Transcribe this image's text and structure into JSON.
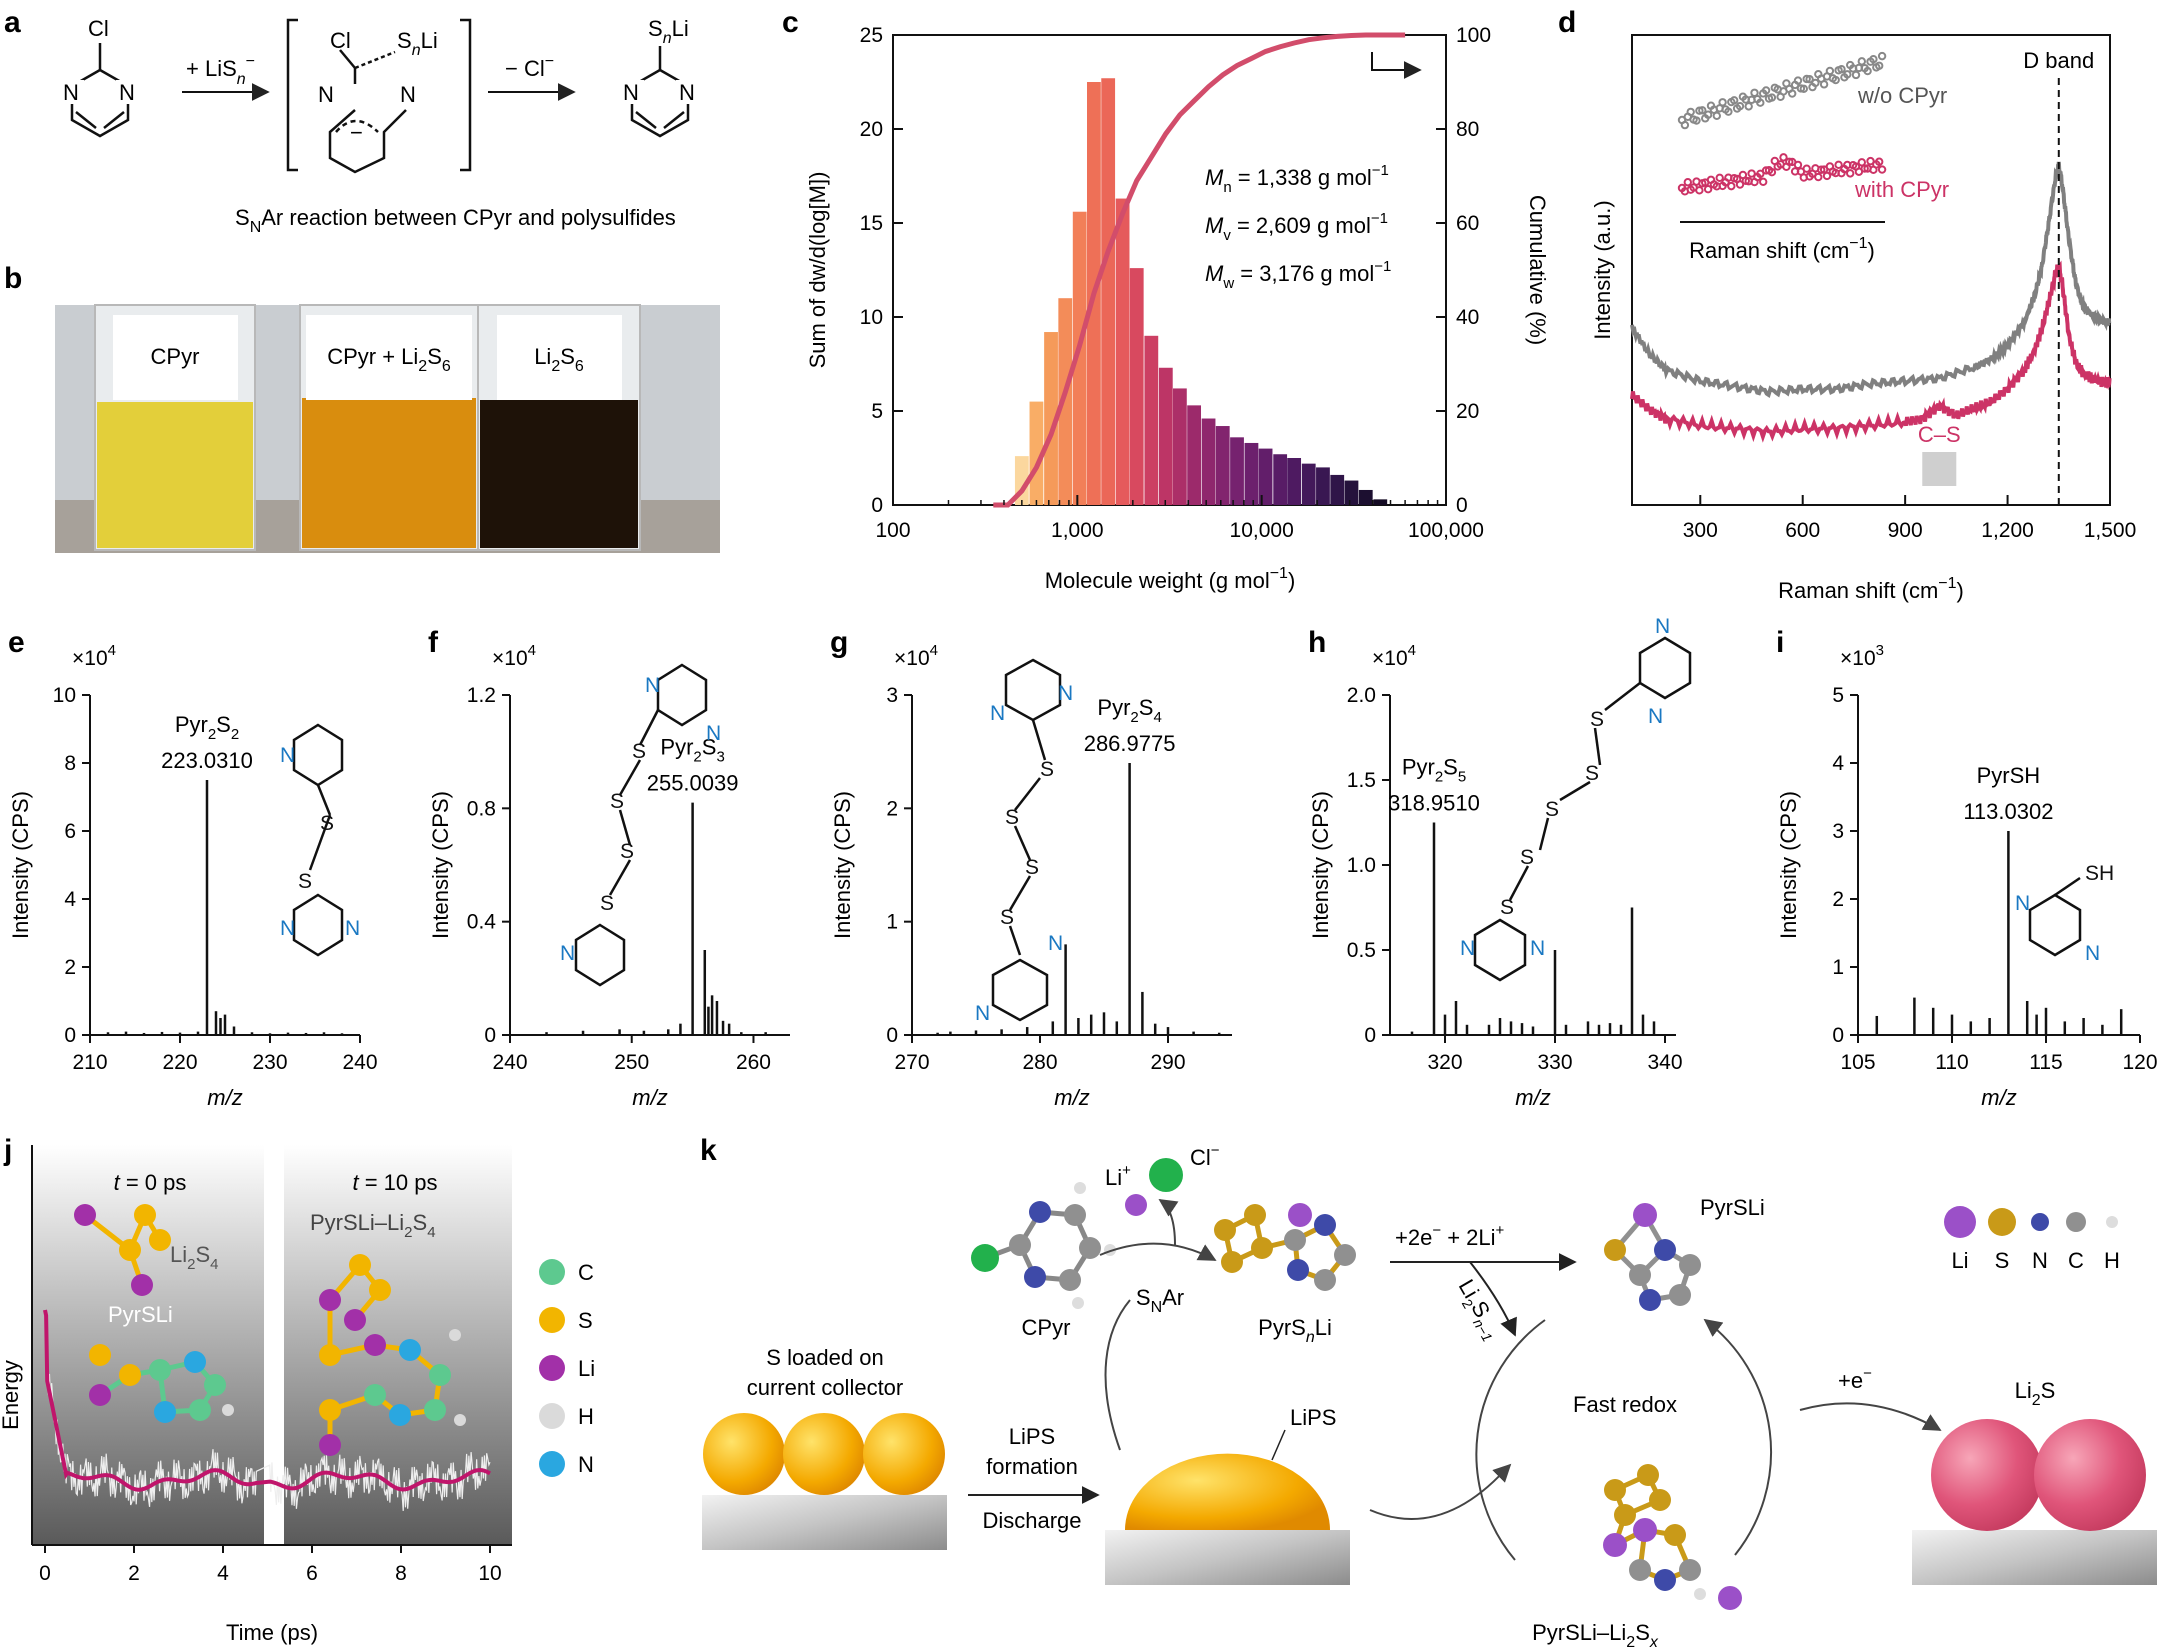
{
  "labels": {
    "a": "a",
    "b": "b",
    "c": "c",
    "d": "d",
    "e": "e",
    "f": "f",
    "g": "g",
    "h": "h",
    "i": "i",
    "j": "j",
    "k": "k"
  },
  "panel_a": {
    "reagent1": "+ LiS",
    "reagent1_sub": "n",
    "reagent1_sup": "−",
    "reagent2": "− Cl",
    "reagent2_sup": "−",
    "atom_cl": "Cl",
    "atom_n": "N",
    "atom_sn": "S",
    "atom_sn_sub": "n",
    "atom_li": "Li",
    "charge": "−",
    "caption_pre": "S",
    "caption_sub": "N",
    "caption_post": "Ar reaction between CPyr and polysulfides"
  },
  "panel_b": {
    "vial1": "CPyr",
    "vial2_pre": "CPyr + Li",
    "vial2_sub1": "2",
    "vial2_mid": "S",
    "vial2_sub2": "6",
    "vial3_pre": "Li",
    "vial3_sub1": "2",
    "vial3_mid": "S",
    "vial3_sub2": "6",
    "colors": {
      "vial1": "#e3cf3a",
      "vial2": "#d98d0e",
      "vial3": "#1e1208",
      "bg": "#c9cdd1"
    }
  },
  "panel_c": {
    "chart_data": {
      "type": "bar",
      "x_scale": "log",
      "xlim": [
        100,
        100000
      ],
      "ylim": [
        0,
        25
      ],
      "y2lim": [
        0,
        100
      ],
      "xticks": [
        "100",
        "1,000",
        "10,000",
        "100,000"
      ],
      "yticks": [
        "0",
        "5",
        "10",
        "15",
        "20",
        "25"
      ],
      "y2ticks": [
        "0",
        "20",
        "40",
        "60",
        "80",
        "100"
      ],
      "xlabel": "Molecule weight (g mol",
      "xlabel_sup": "−1",
      "xlabel_end": ")",
      "ylabel": "Sum of dw/d(log[M])",
      "y2label": "Cumulative (%)",
      "bar_x": [
        500,
        600,
        720,
        860,
        1030,
        1230,
        1470,
        1760,
        2100,
        2520,
        3020,
        3600,
        4300,
        5150,
        6150,
        7350,
        8800,
        10500,
        12600,
        15000,
        18000,
        21500,
        25700,
        30700,
        36700,
        44000
      ],
      "bar_values": [
        2.6,
        5.5,
        9.2,
        11.0,
        15.6,
        22.5,
        22.7,
        16.3,
        12.6,
        9.0,
        7.3,
        6.2,
        5.3,
        4.6,
        4.2,
        3.6,
        3.3,
        3.0,
        2.7,
        2.5,
        2.2,
        2.0,
        1.6,
        1.3,
        0.8,
        0.3
      ],
      "bar_colors": [
        "#fbd79e",
        "#f9ad66",
        "#f59a5a",
        "#f38c59",
        "#f27f58",
        "#ee7057",
        "#eb6758",
        "#e55a5c",
        "#d8495f",
        "#cc3f63",
        "#bd3566",
        "#ac2f68",
        "#9c2a6b",
        "#8f276d",
        "#82246e",
        "#76226f",
        "#6c206d",
        "#621e6a",
        "#581c66",
        "#4e1a61",
        "#43195a",
        "#391752",
        "#2f1548",
        "#25123c",
        "#1c0f30",
        "#140b24"
      ],
      "cum_x": [
        350,
        420,
        500,
        600,
        720,
        860,
        1030,
        1230,
        1470,
        1760,
        2100,
        2520,
        3020,
        3600,
        4300,
        5150,
        6150,
        7350,
        8800,
        10500,
        12600,
        15000,
        18000,
        21500,
        25700,
        30700,
        36700,
        44000,
        52000,
        60000
      ],
      "cum_y": [
        0,
        0,
        3,
        8,
        15,
        24,
        34,
        45,
        54,
        62,
        69,
        74,
        79,
        83,
        86,
        89,
        91.5,
        93.5,
        95,
        96.5,
        97.5,
        98.3,
        99,
        99.4,
        99.7,
        99.9,
        100,
        100,
        100,
        100
      ],
      "cum_color": "#d24d6b",
      "annotations": [
        {
          "sym": "M",
          "sub": "n",
          "val": " = 1,338 g mol",
          "sup": "−1"
        },
        {
          "sym": "M",
          "sub": "v",
          "val": " = 2,609 g mol",
          "sup": "−1"
        },
        {
          "sym": "M",
          "sub": "w",
          "val": " = 3,176 g mol",
          "sup": "−1"
        }
      ]
    }
  },
  "panel_d": {
    "chart_data": {
      "type": "line",
      "xlim": [
        100,
        1500
      ],
      "xticks": [
        "300",
        "600",
        "900",
        "1,200",
        "1,500"
      ],
      "xtick_values": [
        300,
        600,
        900,
        1200,
        1500
      ],
      "xlabel": "Raman shift (cm",
      "xlabel_sup": "−1",
      "xlabel_end": ")",
      "ylabel": "Intensity (a.u.)",
      "dband_label": "D band",
      "dband_x": 1350,
      "cs_label": "C–S",
      "cs_x": 1000,
      "series": [
        {
          "name": "w/o CPyr",
          "color": "#808080",
          "x": [
            100,
            150,
            200,
            300,
            400,
            500,
            600,
            700,
            800,
            900,
            1000,
            1100,
            1150,
            1200,
            1250,
            1280,
            1300,
            1320,
            1340,
            1350,
            1360,
            1380,
            1400,
            1420,
            1450,
            1480,
            1500
          ],
          "y": [
            0.4,
            0.3,
            0.24,
            0.2,
            0.18,
            0.16,
            0.17,
            0.17,
            0.19,
            0.2,
            0.21,
            0.25,
            0.28,
            0.33,
            0.42,
            0.52,
            0.62,
            0.78,
            0.95,
            1.0,
            0.93,
            0.72,
            0.56,
            0.48,
            0.44,
            0.42,
            0.42
          ]
        },
        {
          "name": "with CPyr",
          "color": "#cc3366",
          "x": [
            100,
            150,
            200,
            300,
            400,
            500,
            600,
            700,
            800,
            900,
            950,
            1000,
            1050,
            1100,
            1150,
            1200,
            1250,
            1280,
            1300,
            1320,
            1340,
            1350,
            1360,
            1380,
            1400,
            1420,
            1450,
            1480,
            1500
          ],
          "y": [
            0.18,
            0.14,
            0.11,
            0.09,
            0.08,
            0.07,
            0.08,
            0.08,
            0.09,
            0.1,
            0.11,
            0.15,
            0.12,
            0.14,
            0.16,
            0.2,
            0.26,
            0.32,
            0.38,
            0.46,
            0.55,
            0.57,
            0.52,
            0.36,
            0.28,
            0.25,
            0.23,
            0.22,
            0.22
          ]
        }
      ],
      "inset": {
        "xlabel": "Raman shift (cm",
        "xlabel_sup": "−1",
        "xlabel_end": ")",
        "series1": "w/o CPyr",
        "series2": "with CPyr"
      }
    }
  },
  "ms_panels": [
    {
      "key": "e",
      "ylabel": "Intensity (CPS)",
      "exp": "×10",
      "exp_sup": "4",
      "xlabel": "m/z",
      "xlim": [
        210,
        240
      ],
      "xticks": [
        210,
        220,
        230,
        240
      ],
      "ylim": [
        0,
        10
      ],
      "yticks": [
        "0",
        "2",
        "4",
        "6",
        "8",
        "10"
      ],
      "ytick_values": [
        0,
        2,
        4,
        6,
        8,
        10
      ],
      "peak_label_pre": "Pyr",
      "peak_label_sub1": "2",
      "peak_label_mid": "S",
      "peak_label_sub2": "2",
      "peak_mass": "223.0310",
      "peaks": [
        [
          223,
          7.5
        ],
        [
          224,
          0.7
        ],
        [
          224.5,
          0.5
        ],
        [
          225,
          0.6
        ],
        [
          226,
          0.25
        ],
        [
          212,
          0.08
        ],
        [
          214,
          0.1
        ],
        [
          216,
          0.06
        ],
        [
          218,
          0.09
        ],
        [
          220,
          0.07
        ],
        [
          222,
          0.1
        ],
        [
          228,
          0.08
        ],
        [
          230,
          0.05
        ],
        [
          232,
          0.07
        ],
        [
          234,
          0.06
        ],
        [
          236,
          0.08
        ],
        [
          238,
          0.05
        ]
      ]
    },
    {
      "key": "f",
      "ylabel": "Intensity (CPS)",
      "exp": "×10",
      "exp_sup": "4",
      "xlabel": "m/z",
      "xlim": [
        240,
        263
      ],
      "xticks": [
        240,
        250,
        260
      ],
      "ylim": [
        0,
        1.2
      ],
      "yticks": [
        "0",
        "0.4",
        "0.8",
        "1.2"
      ],
      "ytick_values": [
        0,
        0.4,
        0.8,
        1.2
      ],
      "peak_label_pre": "Pyr",
      "peak_label_sub1": "2",
      "peak_label_mid": "S",
      "peak_label_sub2": "3",
      "peak_mass": "255.0039",
      "peaks": [
        [
          255,
          0.82
        ],
        [
          256,
          0.3
        ],
        [
          256.3,
          0.1
        ],
        [
          256.6,
          0.14
        ],
        [
          257,
          0.12
        ],
        [
          257.5,
          0.05
        ],
        [
          258,
          0.04
        ],
        [
          254,
          0.04
        ],
        [
          253,
          0.02
        ],
        [
          249,
          0.02
        ],
        [
          246,
          0.015
        ],
        [
          243,
          0.01
        ],
        [
          251,
          0.015
        ],
        [
          259,
          0.01
        ],
        [
          261,
          0.01
        ]
      ]
    },
    {
      "key": "g",
      "ylabel": "Intensity (CPS)",
      "exp": "×10",
      "exp_sup": "4",
      "xlabel": "m/z",
      "xlim": [
        270,
        295
      ],
      "xticks": [
        270,
        280,
        290
      ],
      "ylim": [
        0,
        3
      ],
      "yticks": [
        "0",
        "1",
        "2",
        "3"
      ],
      "ytick_values": [
        0,
        1,
        2,
        3
      ],
      "peak_label_pre": "Pyr",
      "peak_label_sub1": "2",
      "peak_label_mid": "S",
      "peak_label_sub2": "4",
      "peak_mass": "286.9775",
      "peaks": [
        [
          287,
          2.4
        ],
        [
          282,
          0.8
        ],
        [
          288,
          0.38
        ],
        [
          281,
          0.12
        ],
        [
          283,
          0.15
        ],
        [
          284,
          0.18
        ],
        [
          285,
          0.2
        ],
        [
          286,
          0.12
        ],
        [
          289,
          0.1
        ],
        [
          290,
          0.07
        ],
        [
          279,
          0.07
        ],
        [
          277,
          0.05
        ],
        [
          275,
          0.04
        ],
        [
          273,
          0.03
        ],
        [
          272,
          0.02
        ],
        [
          292,
          0.03
        ],
        [
          294,
          0.02
        ]
      ]
    },
    {
      "key": "h",
      "ylabel": "Intensity (CPS)",
      "exp": "×10",
      "exp_sup": "4",
      "xlabel": "m/z",
      "xlim": [
        315,
        341
      ],
      "xticks": [
        320,
        330,
        340
      ],
      "ylim": [
        0,
        2
      ],
      "yticks": [
        "0",
        "0.5",
        "1.0",
        "1.5",
        "2.0"
      ],
      "ytick_values": [
        0,
        0.5,
        1.0,
        1.5,
        2.0
      ],
      "peak_label_pre": "Pyr",
      "peak_label_sub1": "2",
      "peak_label_mid": "S",
      "peak_label_sub2": "5",
      "peak_mass": "318.9510",
      "peaks": [
        [
          319,
          1.25
        ],
        [
          337,
          0.75
        ],
        [
          330,
          0.5
        ],
        [
          321,
          0.2
        ],
        [
          320,
          0.12
        ],
        [
          322,
          0.06
        ],
        [
          324,
          0.06
        ],
        [
          325,
          0.1
        ],
        [
          326,
          0.08
        ],
        [
          327,
          0.07
        ],
        [
          328,
          0.05
        ],
        [
          331,
          0.06
        ],
        [
          333,
          0.08
        ],
        [
          334,
          0.06
        ],
        [
          335,
          0.07
        ],
        [
          336,
          0.06
        ],
        [
          338,
          0.12
        ],
        [
          339,
          0.08
        ],
        [
          317,
          0.02
        ]
      ]
    },
    {
      "key": "i",
      "ylabel": "Intensity (CPS)",
      "exp": "×10",
      "exp_sup": "3",
      "xlabel": "m/z",
      "xlim": [
        105,
        120
      ],
      "xticks": [
        105,
        110,
        115,
        120
      ],
      "ylim": [
        0,
        5
      ],
      "yticks": [
        "0",
        "1",
        "2",
        "3",
        "4",
        "5"
      ],
      "ytick_values": [
        0,
        1,
        2,
        3,
        4,
        5
      ],
      "peak_label_pre": "PyrSH",
      "peak_label_sub1": "",
      "peak_label_mid": "",
      "peak_label_sub2": "",
      "peak_mass": "113.0302",
      "peaks": [
        [
          113,
          3.0
        ],
        [
          106,
          0.28
        ],
        [
          108,
          0.55
        ],
        [
          109,
          0.4
        ],
        [
          110,
          0.3
        ],
        [
          111,
          0.2
        ],
        [
          112,
          0.25
        ],
        [
          114,
          0.5
        ],
        [
          114.5,
          0.3
        ],
        [
          115,
          0.4
        ],
        [
          116,
          0.2
        ],
        [
          117,
          0.25
        ],
        [
          118,
          0.15
        ],
        [
          119,
          0.38
        ]
      ]
    }
  ],
  "panel_j": {
    "t0_pre": "t",
    "t0_post": " = 0 ps",
    "t10_pre": "t",
    "t10_post": " = 10 ps",
    "mol1_pre": "Li",
    "mol1_sub1": "2",
    "mol1_mid": "S",
    "mol1_sub2": "4",
    "mol2": "PyrSLi",
    "mol3_pre": "PyrSLi–Li",
    "mol3_sub1": "2",
    "mol3_mid": "S",
    "mol3_sub2": "4",
    "ylabel": "Energy",
    "xlabel": "Time (ps)",
    "xticks": [
      "0",
      "2",
      "4",
      "6",
      "8",
      "10"
    ],
    "legend": [
      {
        "name": "C",
        "color": "#5dc98f"
      },
      {
        "name": "S",
        "color": "#f2b500"
      },
      {
        "name": "Li",
        "color": "#a230a8"
      },
      {
        "name": "H",
        "color": "#dadada"
      },
      {
        "name": "N",
        "color": "#2aa7e0"
      }
    ]
  },
  "panel_k": {
    "li_plus": "Li",
    "li_plus_sup": "+",
    "cl_minus": "Cl",
    "cl_minus_sup": "−",
    "cpyr": "CPyr",
    "snar_pre": "S",
    "snar_sub": "N",
    "snar_post": "Ar",
    "pyrsnli_pre": "PyrS",
    "pyrsnli_sub": "n",
    "pyrsnli_post": "Li",
    "reaction": "+2e",
    "reaction_sup": "−",
    "reaction_mid": " + 2Li",
    "reaction_sup2": "+",
    "li2sn1_pre": "Li",
    "li2sn1_sub1": "2",
    "li2sn1_mid": "S",
    "li2sn1_sub2": "n−1",
    "pyrsli": "PyrSLi",
    "s_loaded1": "S loaded on",
    "s_loaded2": "current collector",
    "lips_formation1": "LiPS",
    "lips_formation2": "formation",
    "discharge": "Discharge",
    "lips": "LiPS",
    "fast_redox": "Fast redox",
    "plus_e": "+e",
    "plus_e_sup": "−",
    "li2s_pre": "Li",
    "li2s_sub": "2",
    "li2s_post": "S",
    "complex_pre": "PyrSLi–Li",
    "complex_sub1": "2",
    "complex_mid": "S",
    "complex_sub2": "x",
    "legend": [
      {
        "name": "Li",
        "color": "#9b50c8"
      },
      {
        "name": "S",
        "color": "#c99a18"
      },
      {
        "name": "N",
        "color": "#3e4aa8"
      },
      {
        "name": "C",
        "color": "#909090"
      },
      {
        "name": "H",
        "color": "#dddddd"
      }
    ]
  }
}
